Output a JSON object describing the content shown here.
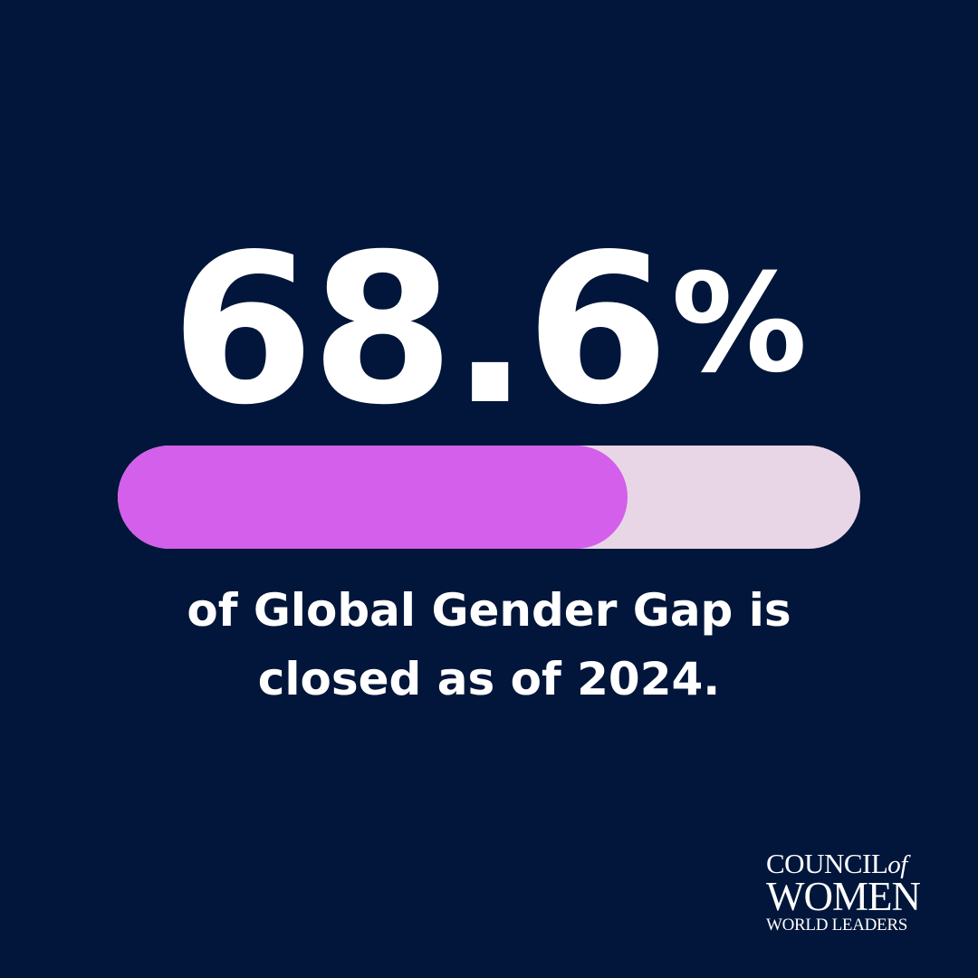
{
  "colors": {
    "background": "#01163A",
    "bar_fill": "#D35FEB",
    "bar_track": "#E8D6E6",
    "text": "#FFFFFF"
  },
  "stat": {
    "number": "68.6",
    "unit": "%"
  },
  "progress": {
    "fraction": 0.686
  },
  "caption": {
    "line1": "of Global Gender Gap is",
    "line2": "closed as of 2024."
  },
  "logo": {
    "line1_main": "COUNCIL",
    "line1_of": "of",
    "line2": "WOMEN",
    "line3": "WORLD LEADERS"
  }
}
